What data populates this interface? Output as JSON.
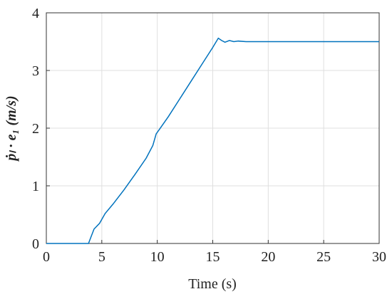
{
  "chart_data": {
    "type": "line",
    "x_label": "Time (s)",
    "y_label": "ṗₗ · e₁ (m/s)",
    "xlim": [
      0,
      30
    ],
    "xticks": [
      0,
      5,
      10,
      15,
      20,
      25,
      30
    ],
    "ylim": [
      0,
      4
    ],
    "yticks": [
      0,
      1,
      2,
      3,
      4
    ],
    "grid": true,
    "series": [
      {
        "color": "#0072bd",
        "x": [
          0,
          3.8,
          4.0,
          4.3,
          4.8,
          5.3,
          6,
          7,
          8,
          9,
          9.6,
          9.9,
          10.2,
          11,
          12,
          13,
          14,
          15,
          15.5,
          15.8,
          16.1,
          16.5,
          16.9,
          17.3,
          18,
          20,
          30
        ],
        "values": [
          0,
          0,
          0.1,
          0.25,
          0.35,
          0.52,
          0.68,
          0.93,
          1.2,
          1.48,
          1.7,
          1.9,
          1.98,
          2.2,
          2.5,
          2.8,
          3.1,
          3.4,
          3.56,
          3.52,
          3.49,
          3.52,
          3.5,
          3.51,
          3.5,
          3.5,
          3.5
        ]
      }
    ]
  }
}
